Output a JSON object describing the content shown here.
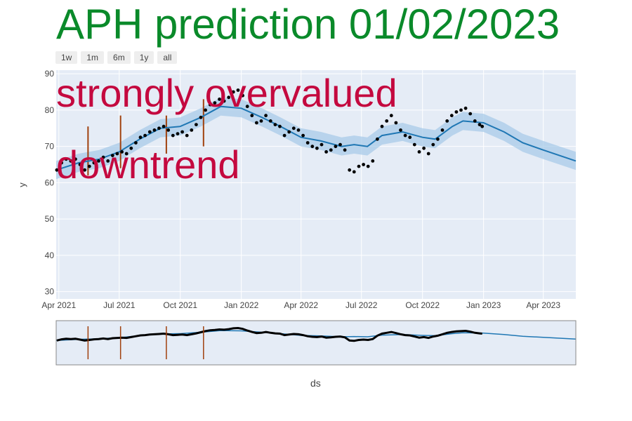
{
  "header": {
    "title": "APH prediction 01/02/2023"
  },
  "range_selector": {
    "buttons": [
      "1w",
      "1m",
      "6m",
      "1y",
      "all"
    ]
  },
  "overlay": {
    "line1": "strongly overvalued",
    "line2": "downtrend"
  },
  "colors": {
    "title": "#0a8a2a",
    "overlay": "#c4093f",
    "forecast": "#1f77b4",
    "band": "#a8cbe8",
    "points": "#000000",
    "changepoints": "#a0400d",
    "plot_bg": "#e5ecf6"
  },
  "chart_data": {
    "type": "scatter",
    "xlabel": "ds",
    "ylabel": "y",
    "ylim": [
      28,
      91
    ],
    "xlim": [
      "2021-03-28",
      "2023-05-20"
    ],
    "grid": true,
    "y_ticks": [
      30,
      40,
      50,
      60,
      70,
      80,
      90
    ],
    "x_ticks": [
      {
        "date": "2021-04-01",
        "label": "Apr 2021"
      },
      {
        "date": "2021-07-01",
        "label": "Jul 2021"
      },
      {
        "date": "2021-10-01",
        "label": "Oct 2021"
      },
      {
        "date": "2022-01-01",
        "label": "Jan 2022"
      },
      {
        "date": "2022-04-01",
        "label": "Apr 2022"
      },
      {
        "date": "2022-07-01",
        "label": "Jul 2022"
      },
      {
        "date": "2022-10-01",
        "label": "Oct 2022"
      },
      {
        "date": "2023-01-01",
        "label": "Jan 2023"
      },
      {
        "date": "2023-04-01",
        "label": "Apr 2023"
      }
    ],
    "series": [
      {
        "kind": "actual",
        "points": [
          [
            "2021-03-29",
            63.5
          ],
          [
            "2021-04-05",
            65.5
          ],
          [
            "2021-04-12",
            66.5
          ],
          [
            "2021-04-19",
            66.0
          ],
          [
            "2021-04-26",
            66.5
          ],
          [
            "2021-05-03",
            65.0
          ],
          [
            "2021-05-10",
            63.5
          ],
          [
            "2021-05-17",
            64.5
          ],
          [
            "2021-05-24",
            65.5
          ],
          [
            "2021-05-31",
            66.0
          ],
          [
            "2021-06-07",
            67.0
          ],
          [
            "2021-06-14",
            66.0
          ],
          [
            "2021-06-21",
            67.5
          ],
          [
            "2021-06-28",
            68.0
          ],
          [
            "2021-07-05",
            68.5
          ],
          [
            "2021-07-12",
            68.0
          ],
          [
            "2021-07-19",
            69.5
          ],
          [
            "2021-07-26",
            71.0
          ],
          [
            "2021-08-02",
            72.5
          ],
          [
            "2021-08-09",
            73.0
          ],
          [
            "2021-08-16",
            74.0
          ],
          [
            "2021-08-23",
            74.5
          ],
          [
            "2021-08-30",
            75.0
          ],
          [
            "2021-09-06",
            75.5
          ],
          [
            "2021-09-13",
            74.5
          ],
          [
            "2021-09-20",
            73.0
          ],
          [
            "2021-09-27",
            73.5
          ],
          [
            "2021-10-04",
            74.0
          ],
          [
            "2021-10-11",
            73.0
          ],
          [
            "2021-10-18",
            74.5
          ],
          [
            "2021-10-25",
            76.0
          ],
          [
            "2021-11-01",
            78.0
          ],
          [
            "2021-11-08",
            80.0
          ],
          [
            "2021-11-15",
            81.5
          ],
          [
            "2021-11-22",
            82.0
          ],
          [
            "2021-11-29",
            83.0
          ],
          [
            "2021-12-06",
            82.5
          ],
          [
            "2021-12-13",
            83.5
          ],
          [
            "2021-12-20",
            85.0
          ],
          [
            "2021-12-27",
            85.5
          ],
          [
            "2022-01-03",
            84.0
          ],
          [
            "2022-01-10",
            81.0
          ],
          [
            "2022-01-17",
            78.5
          ],
          [
            "2022-01-24",
            76.5
          ],
          [
            "2022-01-31",
            77.0
          ],
          [
            "2022-02-07",
            78.5
          ],
          [
            "2022-02-14",
            77.0
          ],
          [
            "2022-02-21",
            76.0
          ],
          [
            "2022-02-28",
            75.5
          ],
          [
            "2022-03-07",
            73.0
          ],
          [
            "2022-03-14",
            74.0
          ],
          [
            "2022-03-21",
            75.0
          ],
          [
            "2022-03-28",
            74.5
          ],
          [
            "2022-04-04",
            73.0
          ],
          [
            "2022-04-11",
            71.0
          ],
          [
            "2022-04-18",
            70.0
          ],
          [
            "2022-04-25",
            69.5
          ],
          [
            "2022-05-02",
            70.5
          ],
          [
            "2022-05-09",
            68.5
          ],
          [
            "2022-05-16",
            69.0
          ],
          [
            "2022-05-23",
            70.0
          ],
          [
            "2022-05-30",
            70.5
          ],
          [
            "2022-06-06",
            69.0
          ],
          [
            "2022-06-13",
            63.5
          ],
          [
            "2022-06-20",
            63.0
          ],
          [
            "2022-06-27",
            64.5
          ],
          [
            "2022-07-04",
            65.0
          ],
          [
            "2022-07-11",
            64.5
          ],
          [
            "2022-07-18",
            66.0
          ],
          [
            "2022-07-25",
            72.0
          ],
          [
            "2022-08-01",
            75.5
          ],
          [
            "2022-08-08",
            77.0
          ],
          [
            "2022-08-15",
            78.5
          ],
          [
            "2022-08-22",
            76.5
          ],
          [
            "2022-08-29",
            74.5
          ],
          [
            "2022-09-05",
            73.0
          ],
          [
            "2022-09-12",
            72.5
          ],
          [
            "2022-09-19",
            70.5
          ],
          [
            "2022-09-26",
            68.5
          ],
          [
            "2022-10-03",
            69.5
          ],
          [
            "2022-10-10",
            68.0
          ],
          [
            "2022-10-17",
            70.5
          ],
          [
            "2022-10-24",
            72.0
          ],
          [
            "2022-10-31",
            74.5
          ],
          [
            "2022-11-07",
            77.0
          ],
          [
            "2022-11-14",
            78.5
          ],
          [
            "2022-11-21",
            79.5
          ],
          [
            "2022-11-28",
            80.0
          ],
          [
            "2022-12-05",
            80.5
          ],
          [
            "2022-12-12",
            79.0
          ],
          [
            "2022-12-19",
            77.0
          ],
          [
            "2022-12-26",
            76.0
          ],
          [
            "2022-12-30",
            75.5
          ]
        ]
      },
      {
        "kind": "trend",
        "points": [
          [
            "2021-03-28",
            63.5
          ],
          [
            "2021-05-01",
            65.5
          ],
          [
            "2021-06-01",
            66.5
          ],
          [
            "2021-07-01",
            68.5
          ],
          [
            "2021-08-01",
            72.0
          ],
          [
            "2021-09-01",
            75.0
          ],
          [
            "2021-10-01",
            75.5
          ],
          [
            "2021-11-01",
            78.0
          ],
          [
            "2021-12-01",
            81.0
          ],
          [
            "2022-01-01",
            80.5
          ],
          [
            "2022-02-01",
            78.0
          ],
          [
            "2022-03-01",
            75.5
          ],
          [
            "2022-04-01",
            72.5
          ],
          [
            "2022-05-01",
            71.5
          ],
          [
            "2022-06-01",
            70.0
          ],
          [
            "2022-06-20",
            70.5
          ],
          [
            "2022-07-10",
            70.0
          ],
          [
            "2022-08-01",
            73.0
          ],
          [
            "2022-09-01",
            74.0
          ],
          [
            "2022-10-01",
            72.5
          ],
          [
            "2022-10-20",
            72.0
          ],
          [
            "2022-11-15",
            75.5
          ],
          [
            "2022-12-01",
            77.0
          ],
          [
            "2023-01-01",
            76.5
          ],
          [
            "2023-02-01",
            74.0
          ],
          [
            "2023-03-01",
            71.0
          ],
          [
            "2023-04-01",
            69.0
          ],
          [
            "2023-05-20",
            66.0
          ]
        ],
        "band": 2.5
      }
    ],
    "changepoints": [
      {
        "date": "2021-05-15",
        "low": 62,
        "high": 75.5
      },
      {
        "date": "2021-07-03",
        "low": 64,
        "high": 78.5
      },
      {
        "date": "2021-09-10",
        "low": 68,
        "high": 78.5
      },
      {
        "date": "2021-11-05",
        "low": 70,
        "high": 83
      }
    ]
  }
}
